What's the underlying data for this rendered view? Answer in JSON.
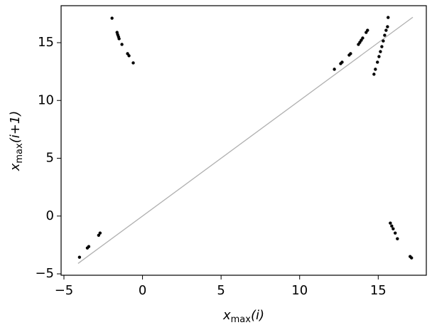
{
  "chart_data": {
    "type": "scatter",
    "xlabel": {
      "var": "x",
      "sub": "max",
      "arg": "(i)"
    },
    "ylabel": {
      "var": "x",
      "sub": "max",
      "arg": "(i+1)"
    },
    "xlim": [
      -5.18,
      18.06
    ],
    "ylim": [
      -5.12,
      18.2
    ],
    "xticks": [
      {
        "value": -5,
        "label": "−5"
      },
      0,
      5,
      10,
      15
    ],
    "yticks": [
      {
        "value": -5,
        "label": "−5"
      },
      0,
      5,
      10,
      15
    ],
    "grid": false,
    "reference_line": {
      "x": [
        -4.1,
        17.2
      ],
      "y": [
        -4.1,
        17.2
      ],
      "color": "#b0b0b0"
    },
    "series": [
      {
        "color": "#000000",
        "x": [
          -1.94,
          -1.62,
          -1.58,
          -1.53,
          -1.49,
          -1.31,
          -0.95,
          -0.86,
          -0.59,
          -4.01,
          -3.51,
          -3.42,
          -2.79,
          -2.7,
          12.21,
          12.61,
          12.7,
          13.15,
          13.24,
          13.74,
          13.83,
          13.92,
          14.01,
          14.23,
          14.32,
          14.73,
          14.82,
          14.95,
          15.05,
          15.14,
          15.23,
          15.32,
          15.41,
          15.5,
          15.59,
          15.63,
          15.77,
          15.86,
          15.95,
          16.08,
          16.22,
          17.03,
          17.12
        ],
        "values": [
          17.12,
          15.89,
          15.7,
          15.52,
          15.34,
          14.85,
          14.05,
          13.87,
          13.25,
          -3.56,
          -2.76,
          -2.64,
          -1.66,
          -1.47,
          12.7,
          13.19,
          13.31,
          13.93,
          14.05,
          14.85,
          15.03,
          15.21,
          15.4,
          15.89,
          16.07,
          12.27,
          12.7,
          13.31,
          13.8,
          14.23,
          14.66,
          15.15,
          15.64,
          16.07,
          16.38,
          17.18,
          -0.61,
          -0.86,
          -1.1,
          -1.47,
          -1.96,
          -3.5,
          -3.62
        ]
      }
    ]
  }
}
